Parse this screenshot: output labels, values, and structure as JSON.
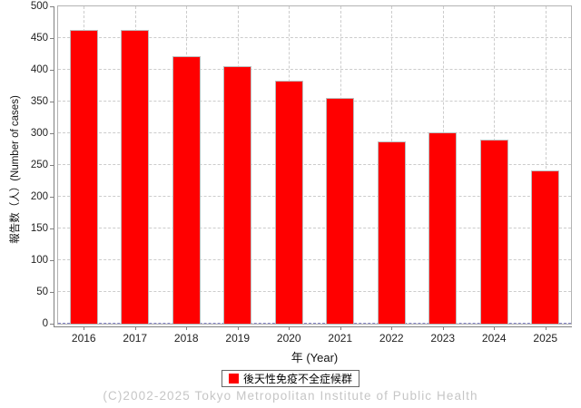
{
  "chart_data": {
    "type": "bar",
    "categories": [
      "2016",
      "2017",
      "2018",
      "2019",
      "2020",
      "2021",
      "2022",
      "2023",
      "2024",
      "2025"
    ],
    "series": [
      {
        "name": "後天性免疫不全症候群",
        "values": [
          463,
          463,
          421,
          406,
          383,
          355,
          287,
          301,
          290,
          241
        ],
        "color": "#ff0000"
      }
    ],
    "title": "",
    "xlabel": "年 (Year)",
    "ylabel": "報告数（人）(Number of cases)",
    "ylim": [
      0,
      500
    ],
    "yticks": [
      0,
      50,
      100,
      150,
      200,
      250,
      300,
      350,
      400,
      450,
      500
    ],
    "grid": true,
    "legend_position": "bottom"
  },
  "legend": {
    "label": "後天性免疫不全症候群",
    "swatch_color": "#ff0000"
  },
  "footer": {
    "copyright": "(C)2002-2025 Tokyo Metropolitan Institute of Public Health"
  },
  "colors": {
    "bar_fill": "#ff0000",
    "bar_border": "#bdbdbd",
    "gridline": "#cccccc",
    "plot_border": "#b3b3b3",
    "axis_line": "#808080",
    "zero_baseline": "#8585c9",
    "tick_text": "#222222",
    "footer_text": "#c6c6c6"
  }
}
